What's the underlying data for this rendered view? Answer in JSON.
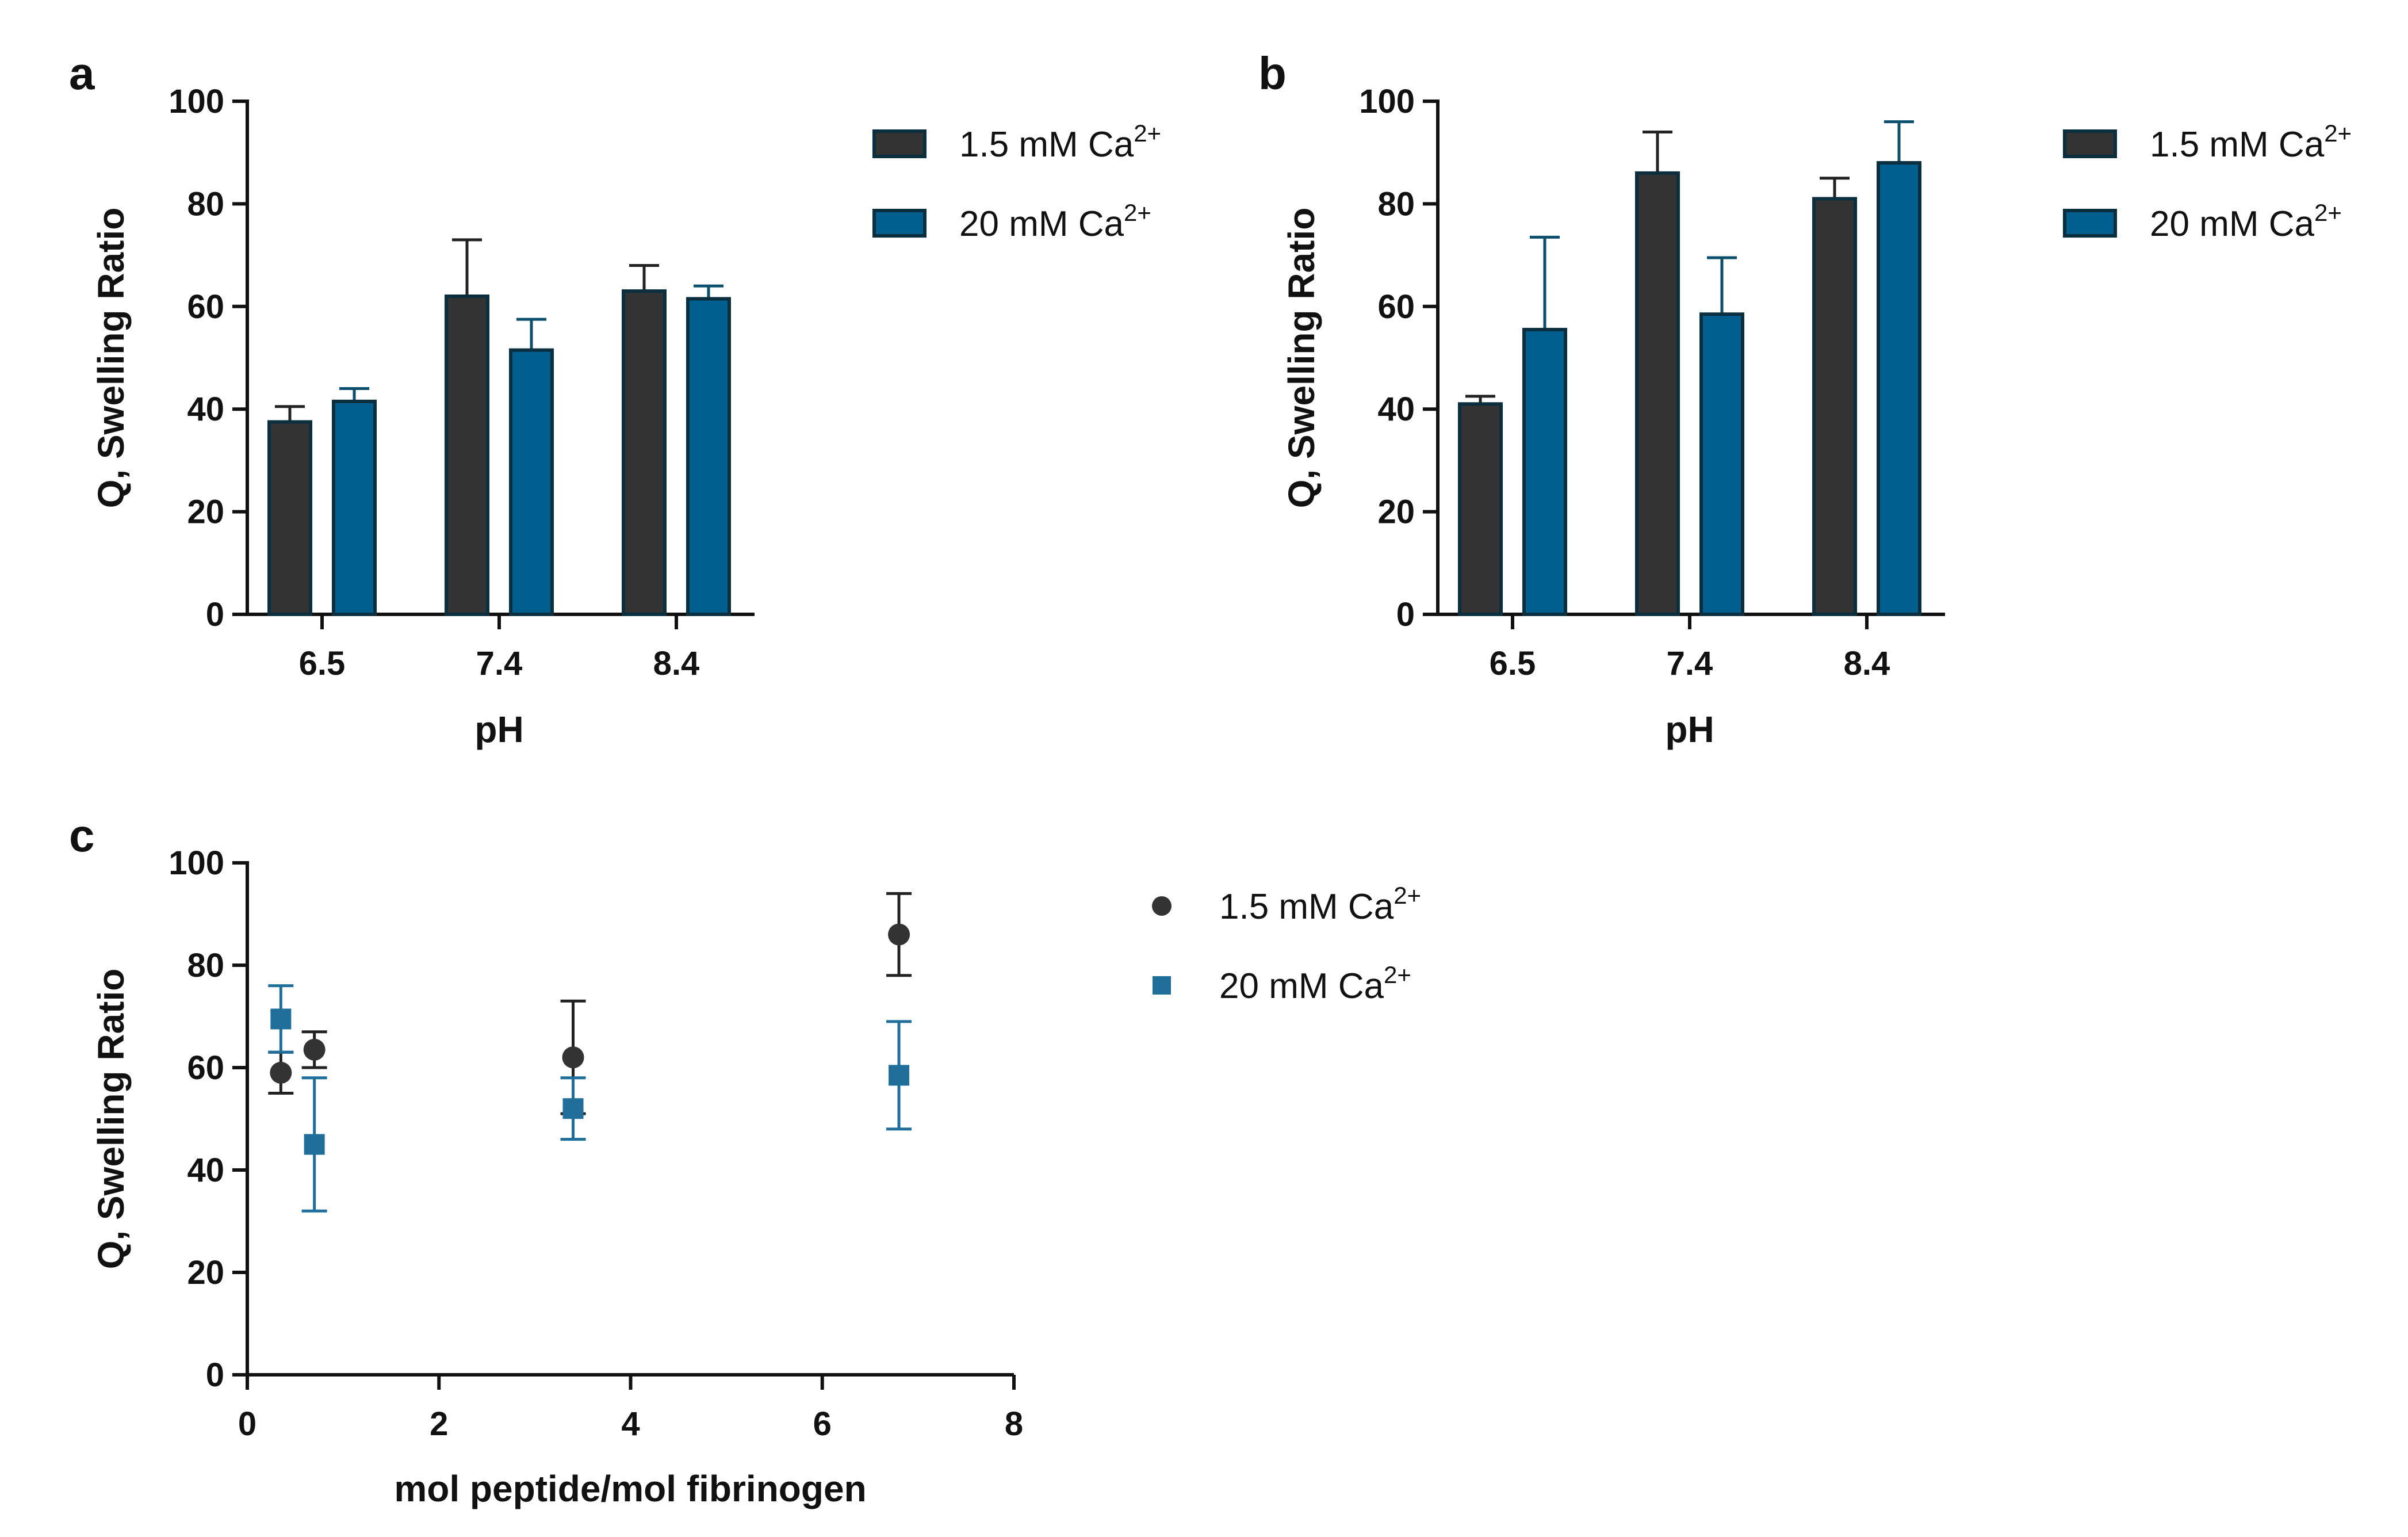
{
  "chart_data": [
    {
      "panel": "a",
      "type": "bar",
      "xlabel": "pH",
      "ylabel": "Q, Swelling Ratio",
      "categories": [
        "6.5",
        "7.4",
        "8.4"
      ],
      "ylim": [
        0,
        100
      ],
      "yticks": [
        0,
        20,
        40,
        60,
        80,
        100
      ],
      "series": [
        {
          "name": "1.5 mM Ca",
          "sup": "2+",
          "color": "#333333",
          "values": [
            37.5,
            62,
            63
          ],
          "errors": [
            3,
            11,
            5
          ]
        },
        {
          "name": "20 mM Ca",
          "sup": "2+",
          "color": "#005f8f",
          "values": [
            41.5,
            51.5,
            61.5
          ],
          "errors": [
            2.5,
            6,
            2.5
          ]
        }
      ],
      "legend": "top-right"
    },
    {
      "panel": "b",
      "type": "bar",
      "xlabel": "pH",
      "ylabel": "Q, Swelling Ratio",
      "categories": [
        "6.5",
        "7.4",
        "8.4"
      ],
      "ylim": [
        0,
        100
      ],
      "yticks": [
        0,
        20,
        40,
        60,
        80,
        100
      ],
      "series": [
        {
          "name": "1.5 mM Ca",
          "sup": "2+",
          "color": "#333333",
          "values": [
            41,
            86,
            81
          ],
          "errors": [
            1.5,
            8,
            4
          ]
        },
        {
          "name": "20 mM Ca",
          "sup": "2+",
          "color": "#005f8f",
          "values": [
            55.5,
            58.5,
            88
          ],
          "errors": [
            18,
            11,
            8
          ]
        }
      ],
      "legend": "top-right"
    },
    {
      "panel": "c",
      "type": "scatter",
      "xlabel": "mol peptide/mol fibrinogen",
      "ylabel": "Q, Swelling  Ratio",
      "xlim": [
        0,
        8
      ],
      "xticks": [
        0,
        2,
        4,
        6,
        8
      ],
      "ylim": [
        0,
        100
      ],
      "yticks": [
        0,
        20,
        40,
        60,
        80,
        100
      ],
      "series": [
        {
          "name": "1.5 mM Ca",
          "sup": "2+",
          "marker": "circle",
          "color": "#333333",
          "x": [
            0.35,
            0.7,
            3.4,
            6.8
          ],
          "y": [
            59,
            63.5,
            62,
            86
          ],
          "errors": [
            4,
            3.5,
            11,
            8
          ]
        },
        {
          "name": "20 mM Ca",
          "sup": "2+",
          "marker": "square",
          "color": "#1f6f9a",
          "x": [
            0.35,
            0.7,
            3.4,
            6.8
          ],
          "y": [
            69.5,
            45,
            52,
            58.5
          ],
          "errors": [
            6.5,
            13,
            6,
            10.5
          ]
        }
      ],
      "legend": "top-right"
    }
  ]
}
